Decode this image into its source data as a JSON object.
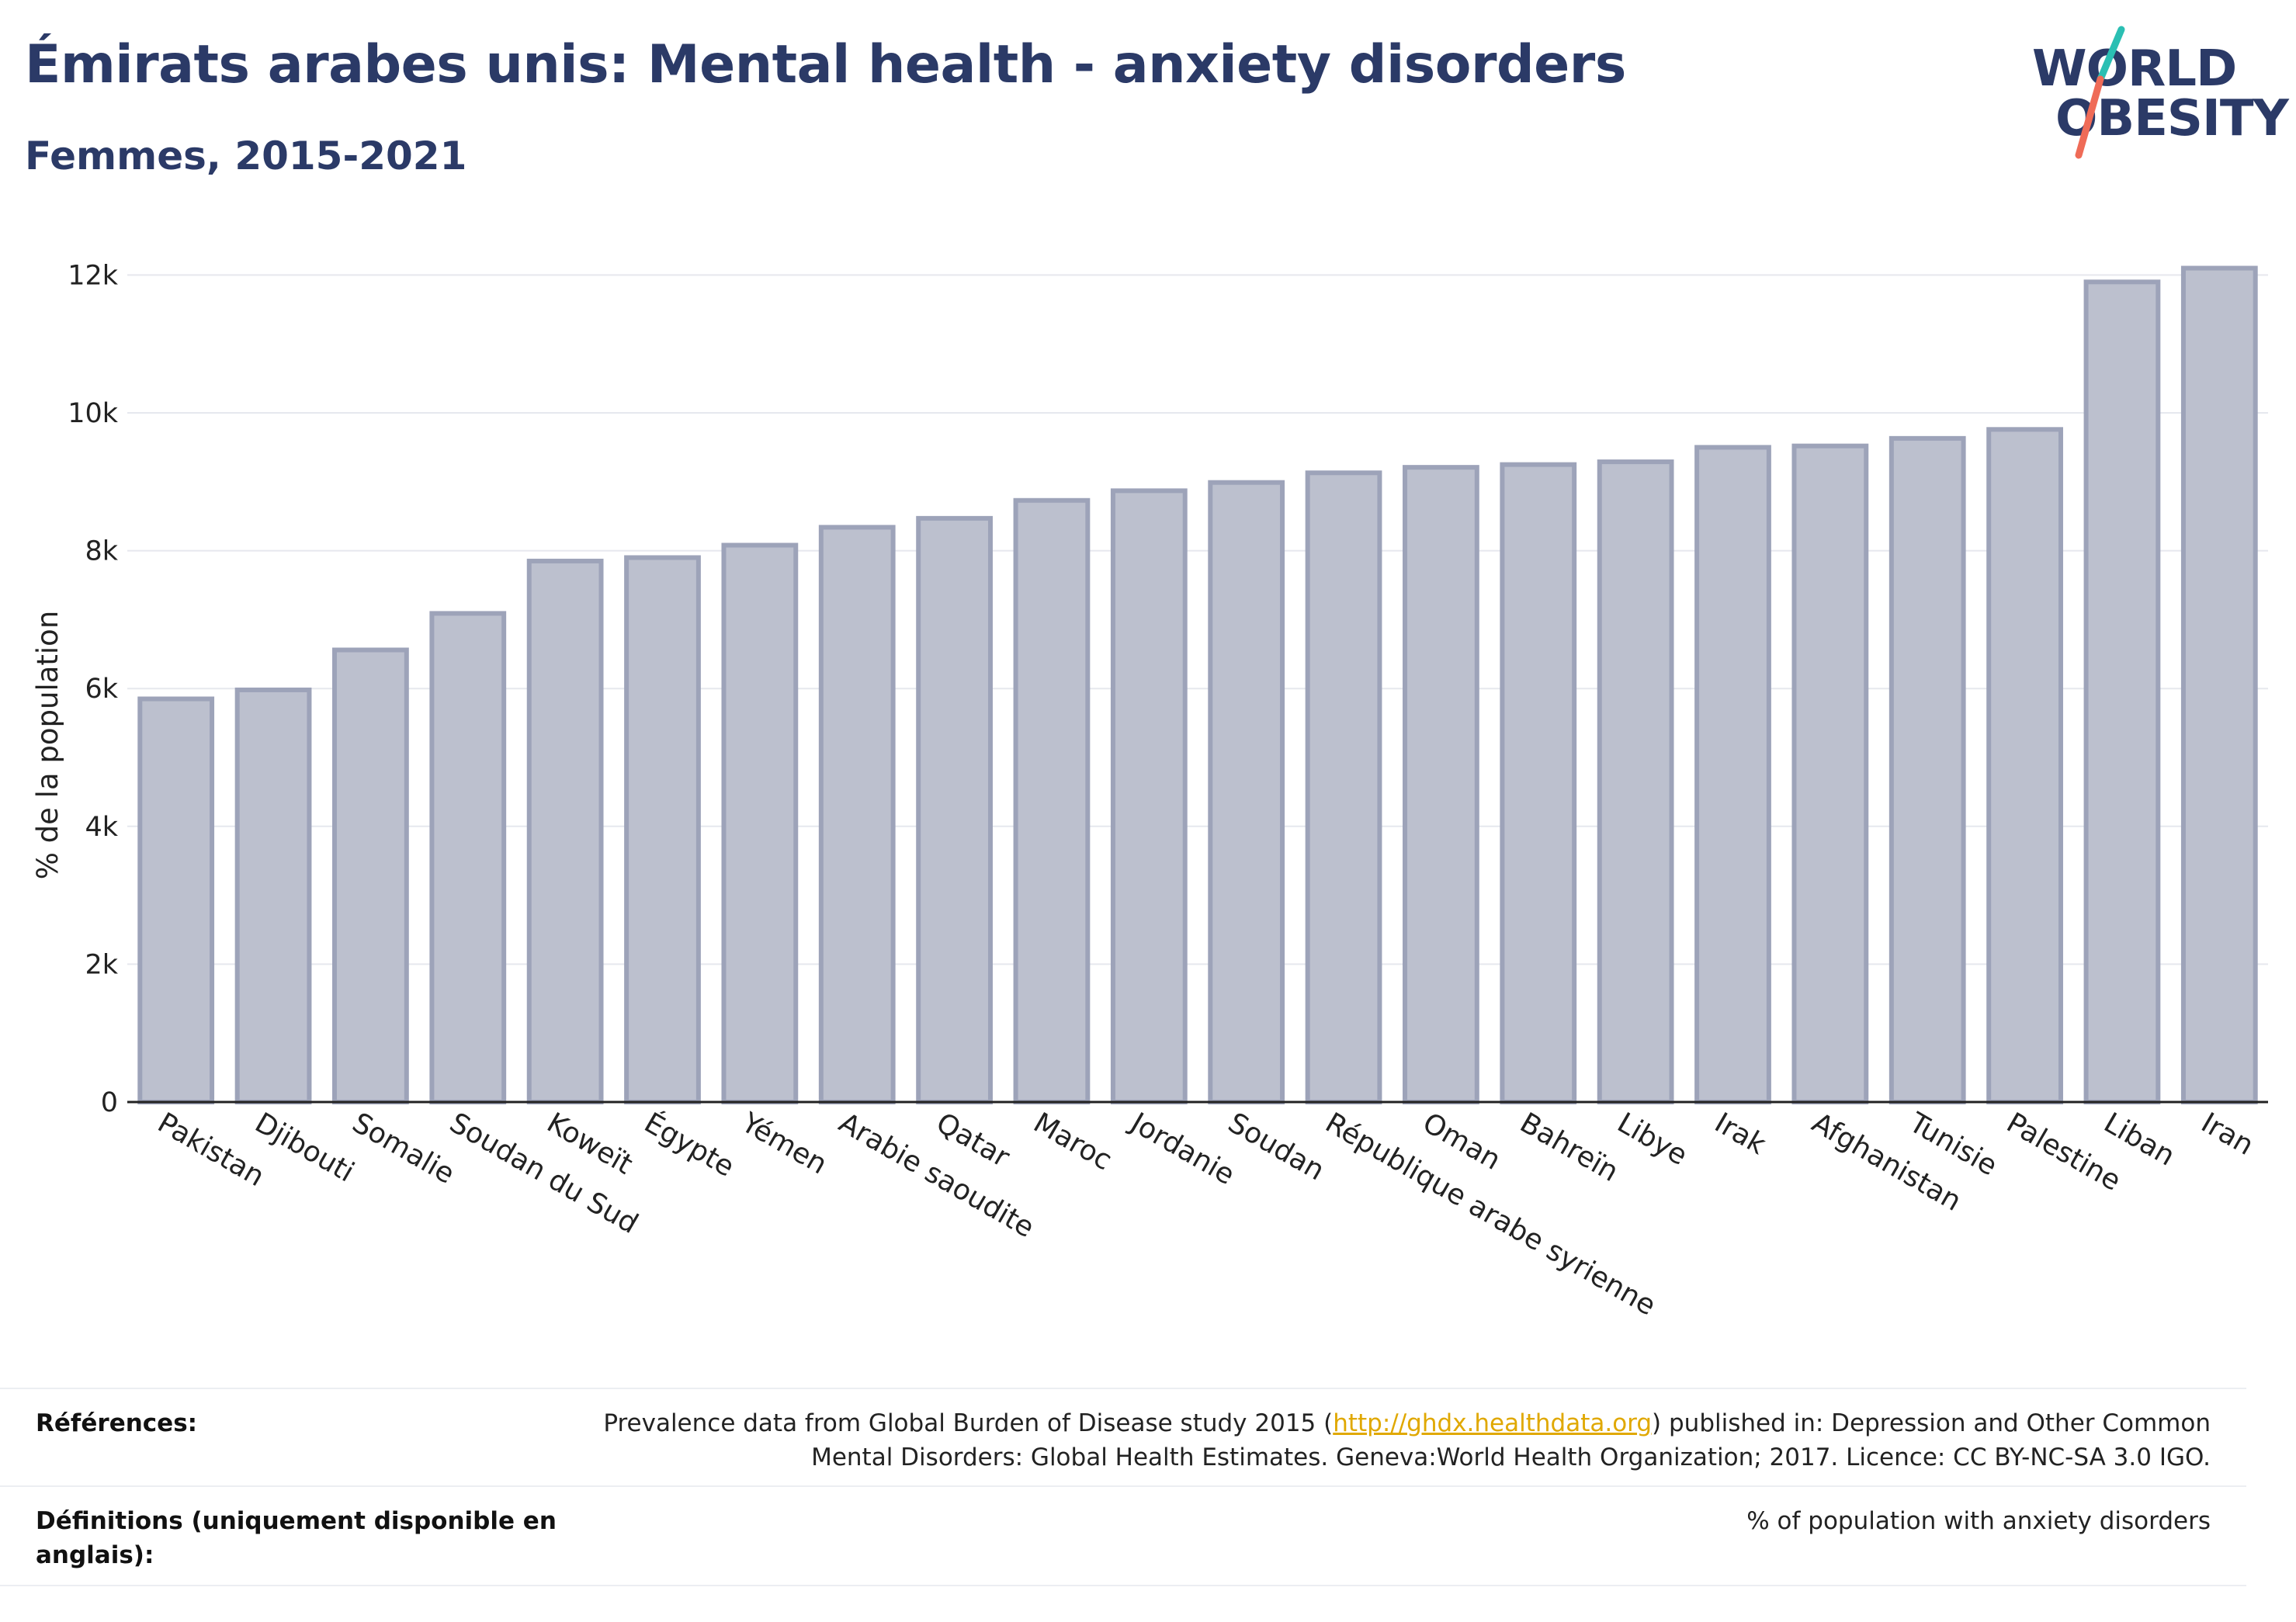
{
  "title": "Émirats arabes unis: Mental health - anxiety disorders",
  "subtitle": "Femmes, 2015-2021",
  "logo": {
    "line1": "WORLD",
    "line2": "OBESITY"
  },
  "colors": {
    "title": "#2b3a67",
    "bar_fill": "#bcc0ce",
    "bar_stroke": "#9da3b9",
    "link": "#e0a800",
    "logo_teal": "#2bbfb3",
    "logo_coral": "#ef6b57"
  },
  "chart_data": {
    "type": "bar",
    "ylabel": "% de la population",
    "xlabel": "",
    "ylim": [
      0,
      12500
    ],
    "yticks": [
      {
        "value": 0,
        "label": "0"
      },
      {
        "value": 2000,
        "label": "2k"
      },
      {
        "value": 4000,
        "label": "4k"
      },
      {
        "value": 6000,
        "label": "6k"
      },
      {
        "value": 8000,
        "label": "8k"
      },
      {
        "value": 10000,
        "label": "10k"
      },
      {
        "value": 12000,
        "label": "12k"
      }
    ],
    "grid": true,
    "categories": [
      "Pakistan",
      "Djibouti",
      "Somalie",
      "Soudan du Sud",
      "Koweït",
      "Égypte",
      "Yémen",
      "Arabie saoudite",
      "Qatar",
      "Maroc",
      "Jordanie",
      "Soudan",
      "République arabe syrienne",
      "Oman",
      "Bahreïn",
      "Libye",
      "Irak",
      "Afghanistan",
      "Tunisie",
      "Palestine",
      "Liban",
      "Iran"
    ],
    "values": [
      5850,
      5980,
      6560,
      7090,
      7850,
      7900,
      8080,
      8340,
      8470,
      8730,
      8870,
      8990,
      9130,
      9210,
      9250,
      9290,
      9500,
      9520,
      9630,
      9760,
      11900,
      12100
    ]
  },
  "references": {
    "label": "Références:",
    "text_before": "Prevalence data from Global Burden of Disease study 2015 (",
    "link": "http://ghdx.healthdata.org",
    "text_after": ") published in: Depression and Other Common",
    "line2": "Mental Disorders: Global Health Estimates. Geneva:World Health Organization; 2017. Licence: CC BY-NC-SA 3.0 IGO."
  },
  "definitions": {
    "label_line1": "Définitions (uniquement disponible en",
    "label_line2": "anglais):",
    "text": "% of population with anxiety disorders"
  }
}
